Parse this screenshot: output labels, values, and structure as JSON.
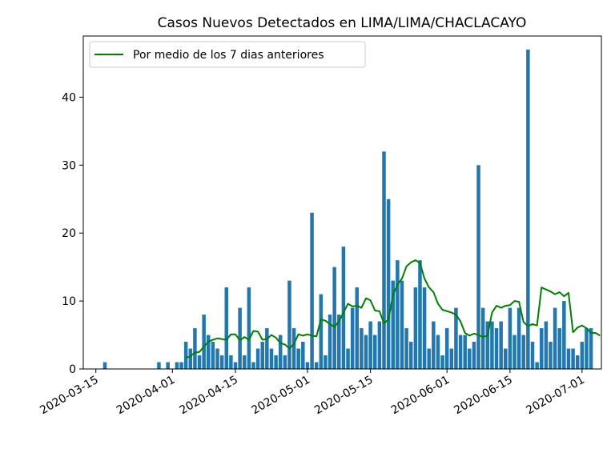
{
  "chart_data": {
    "type": "bar",
    "title": "Casos Nuevos Detectados en LIMA/LIMA/CHACLACAYO",
    "xlabel": "",
    "ylabel": "",
    "x_start_date": "2020-03-13",
    "ylim": [
      0,
      49
    ],
    "yticks": [
      0,
      10,
      20,
      30,
      40
    ],
    "xticks": [
      "2020-03-15",
      "2020-04-01",
      "2020-04-15",
      "2020-05-01",
      "2020-05-15",
      "2020-06-01",
      "2020-06-15",
      "2020-07-01"
    ],
    "bar_color": "#1f77b4",
    "line_color": "#008000",
    "legend": {
      "label": "Por medio de los 7 dias anteriores",
      "placement": "upper-left"
    },
    "series": [
      {
        "name": "Casos nuevos",
        "kind": "bar",
        "values": [
          0,
          0,
          0,
          0,
          1,
          0,
          0,
          0,
          0,
          0,
          0,
          0,
          0,
          0,
          0,
          0,
          1,
          0,
          1,
          0,
          1,
          1,
          4,
          3,
          6,
          2,
          8,
          5,
          4,
          3,
          2,
          12,
          2,
          1,
          9,
          2,
          12,
          1,
          3,
          4,
          6,
          3,
          2,
          5,
          2,
          13,
          6,
          3,
          4,
          1,
          23,
          1,
          11,
          2,
          8,
          15,
          8,
          18,
          3,
          9,
          12,
          6,
          5,
          7,
          5,
          7,
          32,
          25,
          13,
          16,
          13,
          6,
          4,
          12,
          16,
          12,
          3,
          7,
          5,
          2,
          6,
          3,
          9,
          5,
          5,
          3,
          4,
          30,
          9,
          7,
          7,
          6,
          7,
          3,
          9,
          5,
          9,
          5,
          47,
          4,
          1,
          6,
          7,
          4,
          9,
          6,
          10,
          3,
          3,
          2,
          4,
          6,
          6
        ]
      },
      {
        "name": "Por medio de los 7 dias anteriores",
        "kind": "line",
        "values": [
          null,
          null,
          null,
          null,
          null,
          null,
          null,
          null,
          null,
          null,
          null,
          null,
          null,
          null,
          null,
          null,
          null,
          null,
          null,
          null,
          null,
          null,
          1.6,
          1.9,
          2.4,
          2.5,
          3.3,
          4.0,
          4.3,
          4.5,
          4.4,
          4.3,
          5.1,
          5.1,
          4.2,
          4.7,
          4.3,
          5.6,
          5.5,
          4.3,
          4.4,
          5.0,
          4.6,
          3.8,
          3.6,
          3.0,
          3.7,
          5.1,
          4.9,
          5.1,
          4.9,
          4.8,
          7.3,
          7.1,
          6.6,
          6.2,
          7.0,
          8.3,
          9.6,
          9.2,
          9.3,
          9.0,
          10.4,
          10.1,
          8.6,
          8.5,
          6.7,
          7.3,
          10.9,
          12.4,
          13.3,
          15.1,
          15.7,
          16.0,
          15.6,
          13.3,
          12.0,
          11.3,
          9.6,
          8.7,
          8.5,
          8.3,
          8.0,
          7.0,
          5.3,
          4.9,
          5.2,
          5.0,
          4.7,
          4.9,
          8.3,
          9.3,
          9.0,
          9.3,
          9.4,
          10.0,
          9.9,
          6.9,
          6.3,
          6.6,
          6.4,
          12.0,
          11.7,
          11.4,
          11.0,
          11.3,
          10.7,
          11.2,
          5.4,
          6.1,
          6.4,
          6.0,
          5.3,
          5.3,
          4.9
        ]
      }
    ]
  }
}
